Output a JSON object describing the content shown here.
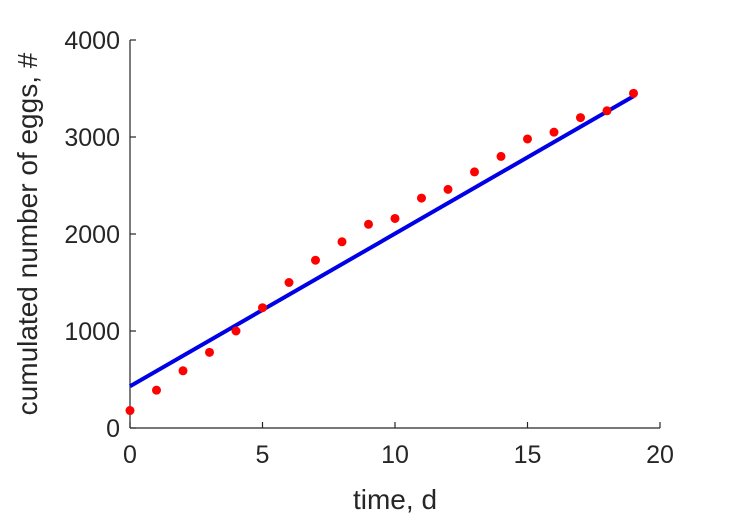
{
  "chart_data": {
    "type": "scatter",
    "xlabel": "time, d",
    "ylabel": "cumulated number of eggs, #",
    "xlim": [
      0,
      20
    ],
    "ylim": [
      0,
      4000
    ],
    "xticks": [
      0,
      5,
      10,
      15,
      20
    ],
    "yticks": [
      0,
      1000,
      2000,
      3000,
      4000
    ],
    "grid": false,
    "legend": "none",
    "series": [
      {
        "type": "scatter",
        "color": "#ff0000",
        "x": [
          0,
          1,
          2,
          3,
          4,
          5,
          6,
          7,
          8,
          9,
          10,
          11,
          12,
          13,
          14,
          15,
          16,
          17,
          18,
          19
        ],
        "values": [
          180,
          390,
          590,
          780,
          1000,
          1240,
          1500,
          1730,
          1920,
          2100,
          2160,
          2370,
          2460,
          2640,
          2800,
          2980,
          3050,
          3200,
          3270,
          3450
        ]
      },
      {
        "type": "line",
        "color": "#0000e6",
        "x": [
          0,
          19
        ],
        "values": [
          430,
          3420
        ]
      }
    ]
  }
}
